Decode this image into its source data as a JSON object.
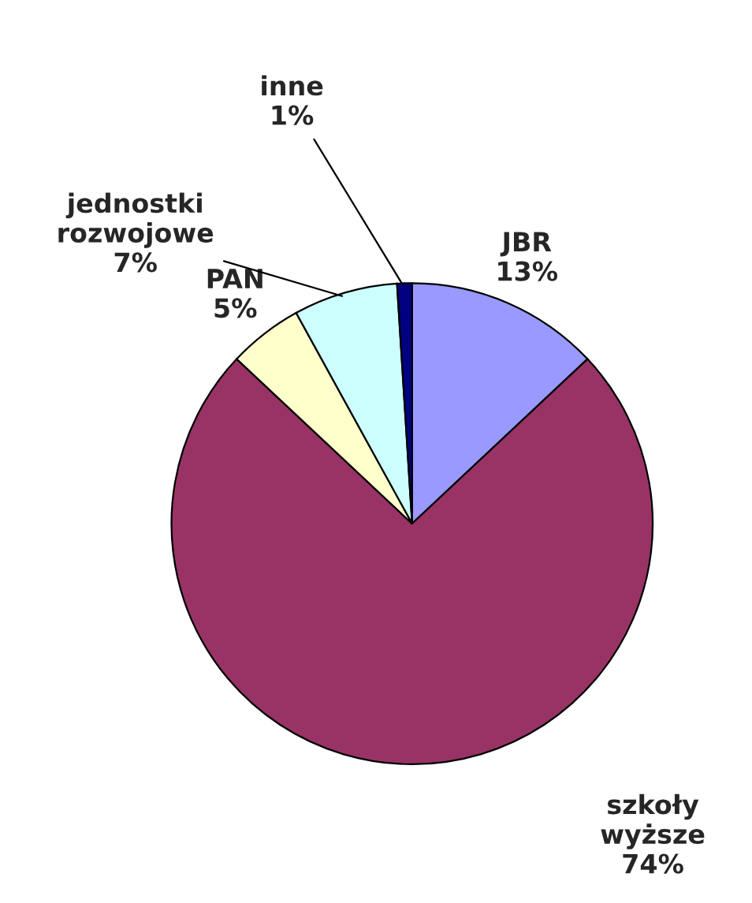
{
  "chart_data": {
    "type": "pie",
    "categories": [
      "JBR",
      "szkoły wyższe",
      "PAN",
      "jednostki rozwojowe",
      "inne"
    ],
    "values": [
      13,
      74,
      5,
      7,
      1
    ],
    "value_labels": [
      "13%",
      "74%",
      "5%",
      "7%",
      "1%"
    ],
    "colors": [
      "#9999ff",
      "#993366",
      "#ffffcc",
      "#ccffff",
      "#000080"
    ],
    "legend": false
  }
}
